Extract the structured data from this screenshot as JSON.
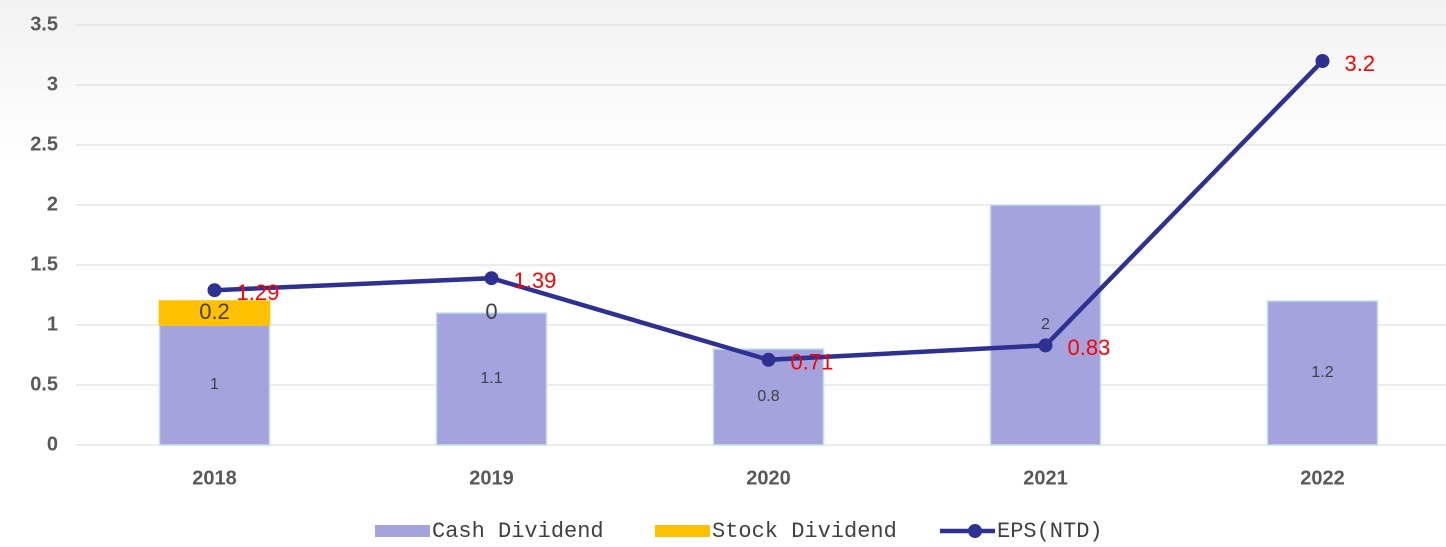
{
  "chart_data": {
    "type": "bar_line",
    "categories": [
      "2018",
      "2019",
      "2020",
      "2021",
      "2022"
    ],
    "series": [
      {
        "name": "Cash Dividend",
        "type": "bar",
        "color": "#a3a3dd",
        "values": [
          1,
          1.1,
          0.8,
          2,
          1.2
        ]
      },
      {
        "name": "Stock Dividend",
        "type": "bar",
        "color": "#ffc000",
        "values": [
          0.2,
          0,
          null,
          null,
          null
        ]
      },
      {
        "name": "EPS(NTD)",
        "type": "line",
        "color": "#2e3192",
        "values": [
          1.29,
          1.39,
          0.71,
          0.83,
          3.2
        ]
      }
    ],
    "ylim": [
      0,
      3.5
    ],
    "yticks": [
      0,
      0.5,
      1,
      1.5,
      2,
      2.5,
      3,
      3.5
    ],
    "grid": true,
    "legend": "bottom",
    "stacked": true
  }
}
